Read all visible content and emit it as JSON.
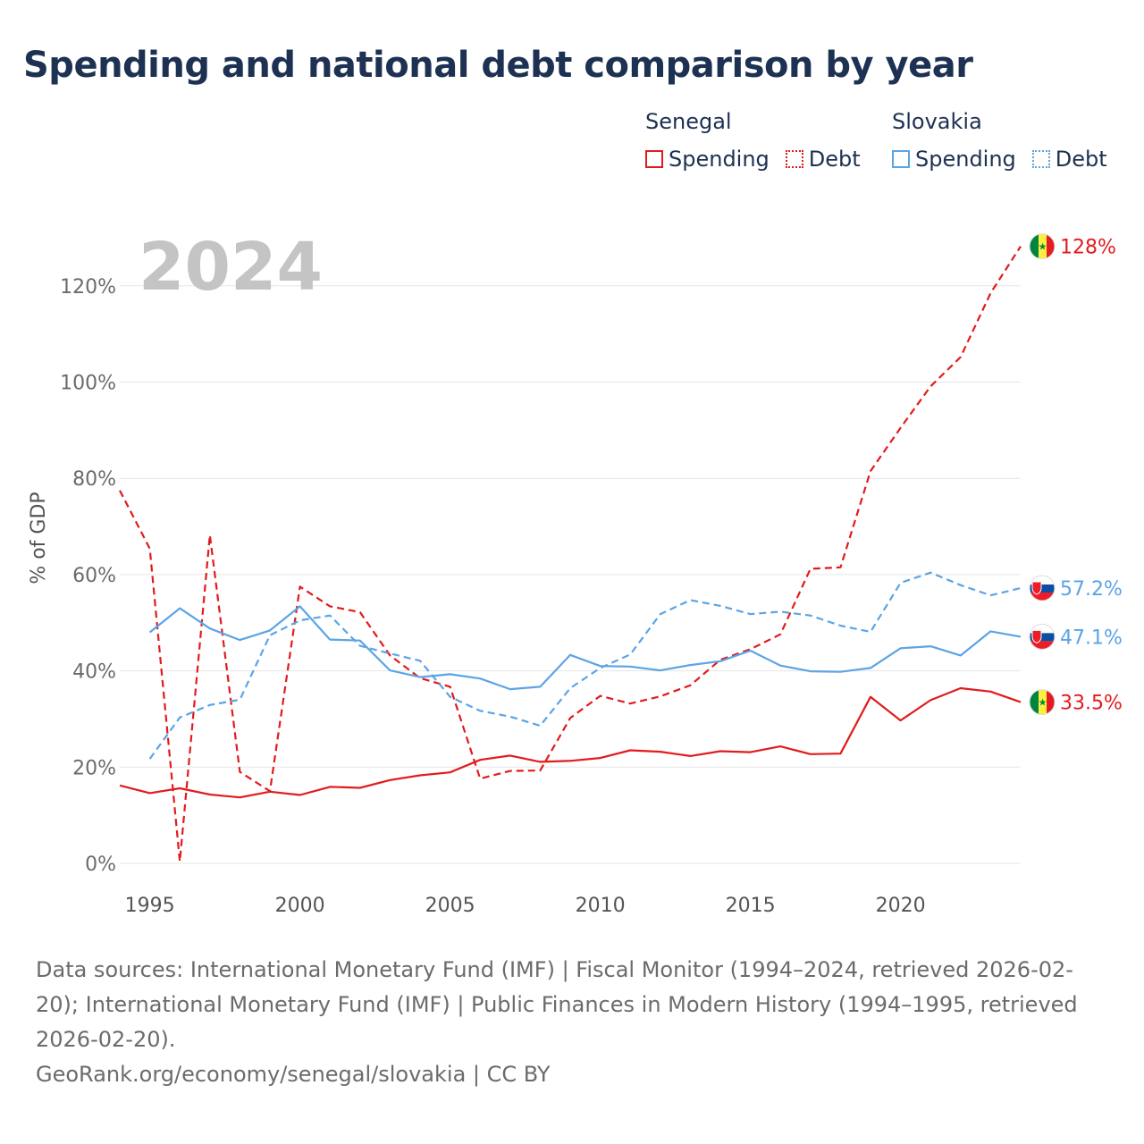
{
  "title": "Spending and national debt comparison by year",
  "legend": {
    "groups": [
      {
        "name": "Senegal",
        "spending_label": "Spending",
        "debt_label": "Debt",
        "color": "#e31a1c"
      },
      {
        "name": "Slovakia",
        "spending_label": "Spending",
        "debt_label": "Debt",
        "color": "#5ba4e5"
      }
    ]
  },
  "footer": {
    "sources": "Data sources: International Monetary Fund (IMF) | Fiscal Monitor (1994–2024, retrieved 2026-02-20); International Monetary Fund (IMF) | Public Finances in Modern History (1994–1995, retrieved 2026-02-20).",
    "credit": "GeoRank.org/economy/senegal/slovakia | CC BY"
  },
  "chart_data": {
    "type": "line",
    "title": "Spending and national debt comparison by year",
    "year_label": "2024",
    "xlabel": "",
    "ylabel": "% of GDP",
    "xlim": [
      1994,
      2024
    ],
    "ylim": [
      0,
      130
    ],
    "x_ticks": [
      1995,
      2000,
      2005,
      2010,
      2015,
      2020
    ],
    "y_ticks": [
      0,
      20,
      40,
      60,
      80,
      100,
      120
    ],
    "y_tick_labels": [
      "0%",
      "20%",
      "40%",
      "60%",
      "80%",
      "100%",
      "120%"
    ],
    "grid": true,
    "series": [
      {
        "name": "Senegal Spending",
        "country": "Senegal",
        "metric": "Spending",
        "color": "#e31a1c",
        "dashed": false,
        "end_label": "33.5%",
        "x": [
          1994,
          1995,
          1996,
          1997,
          1998,
          1999,
          2000,
          2001,
          2002,
          2003,
          2004,
          2005,
          2006,
          2007,
          2008,
          2009,
          2010,
          2011,
          2012,
          2013,
          2014,
          2015,
          2016,
          2017,
          2018,
          2019,
          2020,
          2021,
          2022,
          2023,
          2024
        ],
        "values": [
          16.2,
          14.6,
          15.6,
          14.3,
          13.7,
          14.9,
          14.2,
          15.9,
          15.7,
          17.3,
          18.3,
          18.9,
          21.5,
          22.4,
          21.1,
          21.3,
          21.9,
          23.5,
          23.2,
          22.3,
          23.3,
          23.1,
          24.3,
          22.7,
          22.8,
          34.6,
          29.7,
          33.9,
          36.4,
          35.7,
          33.5
        ]
      },
      {
        "name": "Senegal Debt",
        "country": "Senegal",
        "metric": "Debt",
        "color": "#e31a1c",
        "dashed": true,
        "end_label": "128%",
        "x": [
          1994,
          1995,
          1996,
          1997,
          1998,
          1999,
          2000,
          2001,
          2002,
          2003,
          2004,
          2005,
          2006,
          2007,
          2008,
          2009,
          2010,
          2011,
          2012,
          2013,
          2014,
          2015,
          2016,
          2017,
          2018,
          2019,
          2020,
          2021,
          2022,
          2023,
          2024
        ],
        "values": [
          77.5,
          65.4,
          0.4,
          68.2,
          19.0,
          15.0,
          57.5,
          53.4,
          52.2,
          43.2,
          38.5,
          36.7,
          17.6,
          19.2,
          19.3,
          30.2,
          34.8,
          33.2,
          34.7,
          37.0,
          42.3,
          44.5,
          47.6,
          61.2,
          61.5,
          81.5,
          90.5,
          99.1,
          105.2,
          118.5,
          128.2
        ]
      },
      {
        "name": "Slovakia Spending",
        "country": "Slovakia",
        "metric": "Spending",
        "color": "#5ba4e5",
        "dashed": false,
        "end_label": "47.1%",
        "x": [
          1995,
          1996,
          1997,
          1998,
          1999,
          2000,
          2001,
          2002,
          2003,
          2004,
          2005,
          2006,
          2007,
          2008,
          2009,
          2010,
          2011,
          2012,
          2013,
          2014,
          2015,
          2016,
          2017,
          2018,
          2019,
          2020,
          2021,
          2022,
          2023,
          2024
        ],
        "values": [
          48.0,
          53.0,
          48.8,
          46.4,
          48.4,
          53.4,
          46.5,
          46.3,
          40.1,
          38.7,
          39.3,
          38.4,
          36.2,
          36.7,
          43.3,
          41.0,
          40.9,
          40.1,
          41.2,
          42.0,
          44.2,
          41.1,
          39.9,
          39.8,
          40.6,
          44.7,
          45.1,
          43.2,
          48.2,
          47.1
        ]
      },
      {
        "name": "Slovakia Debt",
        "country": "Slovakia",
        "metric": "Debt",
        "color": "#5ba4e5",
        "dashed": true,
        "end_label": "57.2%",
        "x": [
          1995,
          1996,
          1997,
          1998,
          1999,
          2000,
          2001,
          2002,
          2003,
          2004,
          2005,
          2006,
          2007,
          2008,
          2009,
          2010,
          2011,
          2012,
          2013,
          2014,
          2015,
          2016,
          2017,
          2018,
          2019,
          2020,
          2021,
          2022,
          2023,
          2024
        ],
        "values": [
          21.7,
          30.3,
          32.9,
          34.0,
          47.4,
          50.5,
          51.5,
          45.2,
          43.6,
          42.1,
          34.6,
          31.7,
          30.5,
          28.6,
          36.4,
          40.6,
          43.4,
          51.8,
          54.7,
          53.5,
          51.8,
          52.3,
          51.5,
          49.4,
          48.1,
          58.3,
          60.4,
          57.8,
          55.7,
          57.2
        ]
      }
    ]
  }
}
